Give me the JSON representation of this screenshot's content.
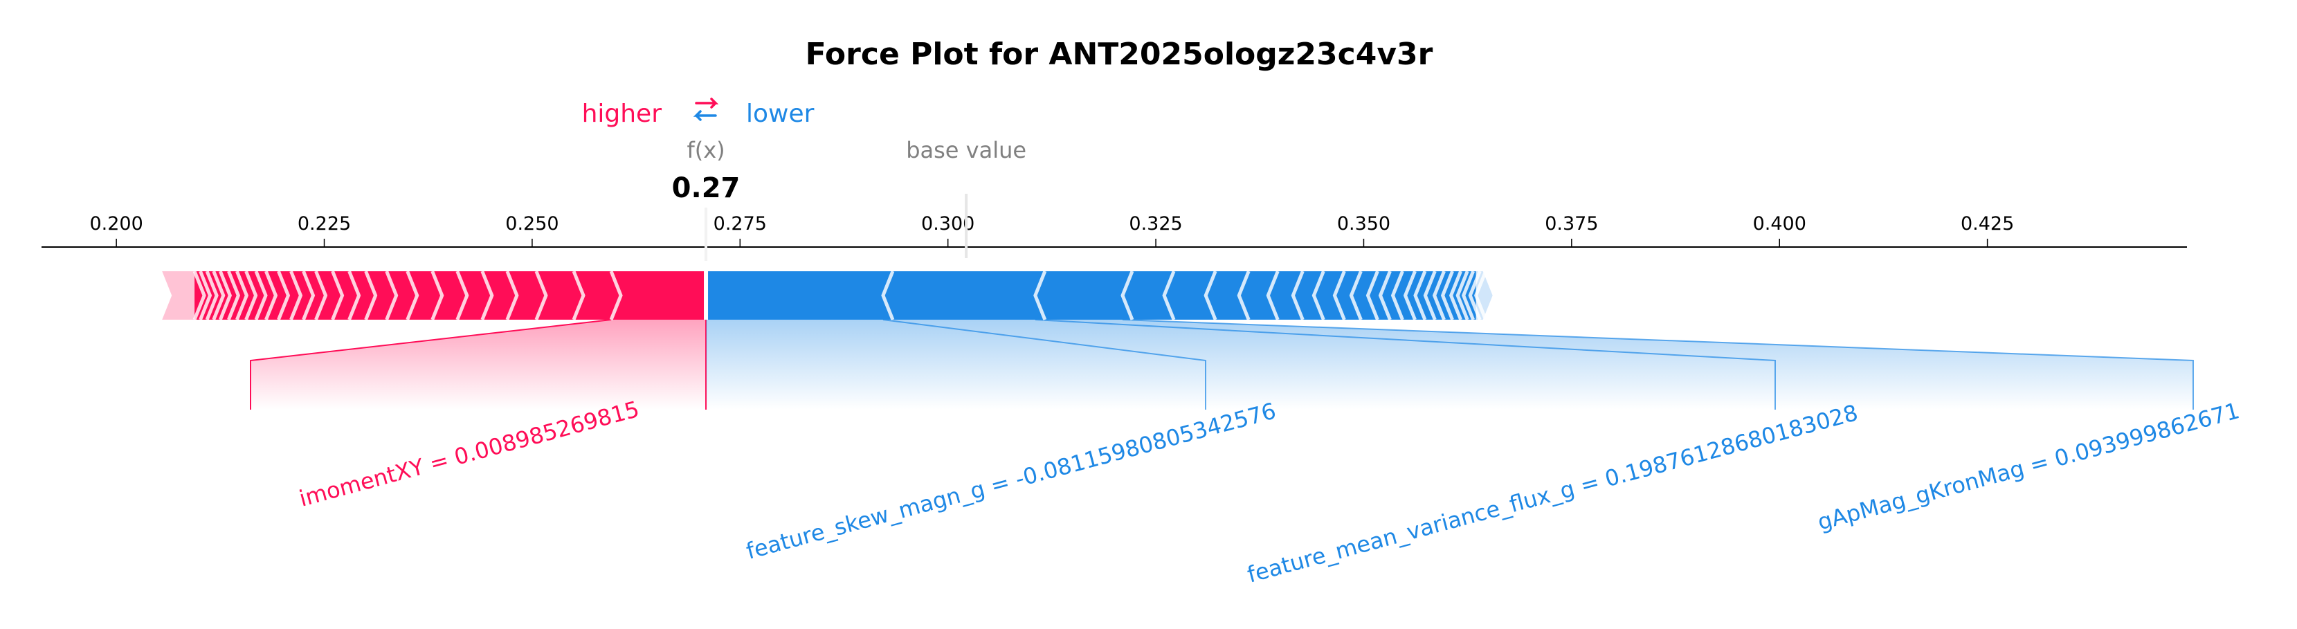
{
  "chart_data": {
    "type": "force",
    "title": "Force Plot for ANT2025ologz23c4v3r",
    "legend": {
      "higher": "higher",
      "lower": "lower",
      "arrow_icon": "swap-arrows-icon"
    },
    "fx_label": "f(x)",
    "fx_value_label": "0.27",
    "fx": 0.2709,
    "base_value_label": "base value",
    "base_value": 0.3022,
    "xlim": [
      0.191,
      0.449
    ],
    "ticks": [
      {
        "value": 0.2,
        "label": "0.200"
      },
      {
        "value": 0.225,
        "label": "0.225"
      },
      {
        "value": 0.25,
        "label": "0.250"
      },
      {
        "value": 0.275,
        "label": "0.275"
      },
      {
        "value": 0.3,
        "label": "0.300"
      },
      {
        "value": 0.325,
        "label": "0.325"
      },
      {
        "value": 0.35,
        "label": "0.350"
      },
      {
        "value": 0.375,
        "label": "0.375"
      },
      {
        "value": 0.4,
        "label": "0.400"
      },
      {
        "value": 0.425,
        "label": "0.425"
      }
    ],
    "bar_extent": [
      0.2055,
      0.3655
    ],
    "positive": {
      "color": "#ff0d57",
      "light_color": "#ffc3d5",
      "features": [
        {
          "label": "imomentXY = 0.008985269815",
          "start": 0.2595,
          "end": 0.2709
        }
      ],
      "other_bounds": [
        0.255,
        0.2505,
        0.247,
        0.244,
        0.241,
        0.238,
        0.235,
        0.2325,
        0.23,
        0.228,
        0.226,
        0.224,
        0.2225,
        0.221,
        0.2195,
        0.218,
        0.2168,
        0.2156,
        0.2145,
        0.2135,
        0.2125,
        0.2117,
        0.2109,
        0.2101,
        0.2094
      ]
    },
    "negative": {
      "color": "#1e88e5",
      "light_color": "#d1e6fa",
      "features": [
        {
          "label": "feature_skew_magn_g = -0.08115980805342576",
          "start": 0.2709,
          "end": 0.2922
        },
        {
          "label": "feature_mean_variance_flux_g = 0.19876128680183028",
          "start": 0.2922,
          "end": 0.3105
        },
        {
          "label": "gApMag_gKronMag = 0.093999862671",
          "start": 0.3105,
          "end": 0.321
        }
      ],
      "other_bounds": [
        0.326,
        0.331,
        0.335,
        0.3385,
        0.3415,
        0.344,
        0.3465,
        0.3485,
        0.3505,
        0.352,
        0.3535,
        0.355,
        0.3562,
        0.3574,
        0.3585,
        0.3595,
        0.3605,
        0.3613,
        0.362,
        0.3628,
        0.3635
      ]
    }
  }
}
